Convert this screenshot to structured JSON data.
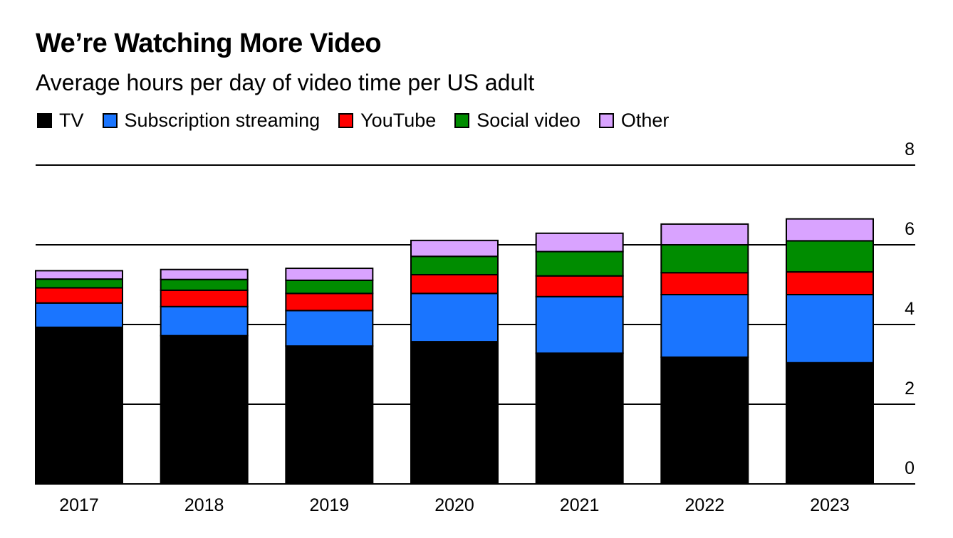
{
  "chart_data": {
    "type": "bar",
    "stacked": true,
    "title": "We’re Watching More Video",
    "subtitle": "Average hours per day of video time per US adult",
    "categories": [
      "2017",
      "2018",
      "2019",
      "2020",
      "2021",
      "2022",
      "2023"
    ],
    "series": [
      {
        "name": "TV",
        "color": "#000000",
        "values": [
          3.93,
          3.72,
          3.46,
          3.57,
          3.28,
          3.18,
          3.04
        ]
      },
      {
        "name": "Subscription streaming",
        "color": "#1a75ff",
        "values": [
          0.61,
          0.73,
          0.89,
          1.21,
          1.42,
          1.57,
          1.71
        ]
      },
      {
        "name": "YouTube",
        "color": "#ff0000",
        "values": [
          0.38,
          0.41,
          0.43,
          0.47,
          0.52,
          0.55,
          0.57
        ]
      },
      {
        "name": "Social video",
        "color": "#008c00",
        "values": [
          0.22,
          0.27,
          0.33,
          0.46,
          0.61,
          0.7,
          0.78
        ]
      },
      {
        "name": "Other",
        "color": "#d9a3ff",
        "values": [
          0.21,
          0.25,
          0.3,
          0.4,
          0.46,
          0.52,
          0.55
        ]
      }
    ],
    "ylim": [
      0,
      8
    ],
    "yticks": [
      "0",
      "2",
      "4",
      "6",
      "8"
    ],
    "y_axis_side": "right",
    "grid": true,
    "legend_position": "top-left",
    "xlabel": "",
    "ylabel": ""
  }
}
